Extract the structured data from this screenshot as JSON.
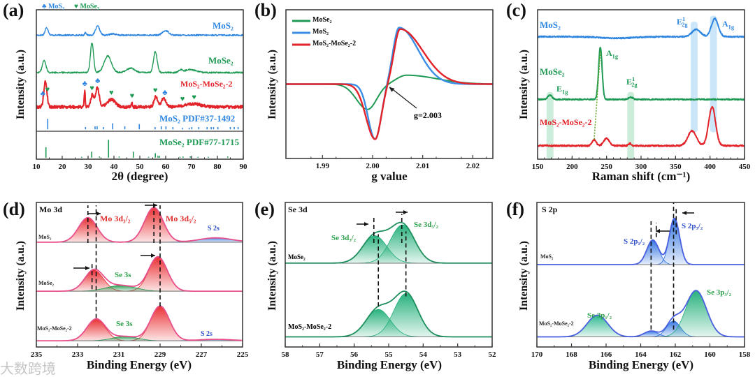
{
  "panels": {
    "a": {
      "letter": "(a)",
      "legend_mos2": "♣ MoS₂",
      "legend_mose2": "♥ MoSe₂",
      "mos2": "MoS₂",
      "mose2": "MoSe₂",
      "composite": "MoS₂-MoSe₂-2",
      "ref_mos2": "MoS₂  PDF#37-1492",
      "ref_mose2": "MoSe₂ PDF#77-1715"
    },
    "b": {
      "letter": "(b)",
      "legend": [
        "MoSe₂",
        "MoS₂",
        "MoS₂-MoSe₂-2"
      ],
      "annotation": "g=2.003"
    },
    "c": {
      "letter": "(c)",
      "mos2": "MoS₂",
      "mose2": "MoSe₂",
      "composite": "MoS₂-MoSe₂-2",
      "e2g_blue": {
        "base": "E",
        "sup": "1",
        "sub": "2g"
      },
      "a1g_blue": {
        "base": "A",
        "sub": "1g"
      },
      "a1g_green": {
        "base": "A",
        "sub": "1g"
      },
      "e1g_green": {
        "base": "E",
        "sub": "1g"
      },
      "e2g_green": {
        "base": "E",
        "sup": "1",
        "sub": "2g"
      }
    },
    "d": {
      "letter": "(d)",
      "title": "Mo 3d",
      "mos2": "MoS₂",
      "mose2": "MoSe₂",
      "composite": "MoS₂-MoSe₂-2",
      "mo3d32": "Mo 3d₃/₂",
      "mo3d52": "Mo 3d₅/₂",
      "s2s_1": "S 2s",
      "se3s_1": "Se 3s",
      "se3s_2": "Se 3s",
      "s2s_2": "S 2s"
    },
    "e": {
      "letter": "(e)",
      "title": "Se 3d",
      "se3d32": "Se 3d₃/₂",
      "se3d52": "Se 3d₅/₂",
      "mose2": "MoSe₂",
      "composite": "MoS₂-MoSe₂-2"
    },
    "f": {
      "letter": "(f)",
      "title": "S 2p",
      "s2p12": "S 2p₁/₂",
      "s2p32": "S 2p₃/₂",
      "mos2": "MoS₂",
      "se3p12": "Se 3p₁/₂",
      "se3p32": "Se 3p₃/₂",
      "composite": "MoS₂-MoSe₂-2"
    }
  },
  "watermark": "大数跨境",
  "chart_data": [
    {
      "id": "a",
      "type": "line",
      "xlabel": "2θ (degree)",
      "ylabel": "Intensity (a.u.)",
      "xlim": [
        10,
        90
      ],
      "ylim": [
        0,
        100
      ],
      "xticks": [
        10,
        20,
        30,
        40,
        50,
        60,
        70,
        80,
        90
      ],
      "minor_step": 5,
      "divider": 18.7,
      "series": [
        {
          "name": "MoS₂",
          "color": "#2f86e0",
          "offset": 83,
          "noise": 0.5,
          "peaks": [
            [
              14,
              5,
              0.6
            ],
            [
              29,
              2,
              0.3
            ],
            [
              33.7,
              6,
              0.8
            ],
            [
              39.5,
              1,
              1
            ],
            [
              60,
              3,
              1.2
            ]
          ]
        },
        {
          "name": "MoSe₂",
          "color": "#1f9a55",
          "offset": 58,
          "noise": 0.5,
          "peaks": [
            [
              13,
              8,
              0.7
            ],
            [
              31.5,
              20,
              0.6
            ],
            [
              37.6,
              11,
              1.4
            ],
            [
              46.5,
              3,
              1.5
            ],
            [
              56,
              14,
              0.7
            ],
            [
              65.8,
              1.5,
              0.8
            ],
            [
              69.5,
              2,
              2
            ]
          ]
        },
        {
          "name": "MoS₂-MoSe₂-2",
          "color": "#e3232a",
          "offset": 35,
          "noise": 1.0,
          "width": 2,
          "peaks": [
            [
              13.5,
              17,
              0.6
            ],
            [
              28.7,
              11,
              0.2
            ],
            [
              31.6,
              8,
              0.6
            ],
            [
              33.6,
              13,
              0.7
            ],
            [
              39,
              5,
              1.5
            ],
            [
              47,
              3,
              0.2
            ],
            [
              56.2,
              7,
              0.7
            ],
            [
              59.2,
              6,
              0.8
            ],
            [
              70.5,
              2,
              3
            ]
          ]
        }
      ],
      "sticks": [
        {
          "name": "MoS₂ PDF#37-1492",
          "color": "#2f86e0",
          "offset": 20,
          "lines": [
            [
              14.4,
              7
            ],
            [
              29,
              1.5
            ],
            [
              32.7,
              2
            ],
            [
              33.5,
              2
            ],
            [
              35.9,
              1.5
            ],
            [
              39.5,
              4
            ],
            [
              44.2,
              2
            ],
            [
              49.8,
              3.5
            ],
            [
              55.9,
              1.5
            ],
            [
              58.3,
              2
            ],
            [
              60.1,
              2
            ],
            [
              62.8,
              1.5
            ],
            [
              66.5,
              1
            ],
            [
              69.1,
              1
            ],
            [
              70.1,
              1.5
            ],
            [
              72.8,
              1.5
            ],
            [
              76,
              1.5
            ],
            [
              77.6,
              1.5
            ],
            [
              78.5,
              1.5
            ],
            [
              80.2,
              1.5
            ],
            [
              85,
              1.5
            ],
            [
              86.5,
              1.5
            ],
            [
              88,
              1.5
            ]
          ]
        },
        {
          "name": "MoSe₂ PDF#77-1715",
          "color": "#1f9a55",
          "offset": 1,
          "lines": [
            [
              13.7,
              7
            ],
            [
              27.5,
              0.6
            ],
            [
              31.4,
              4
            ],
            [
              34.4,
              0.8
            ],
            [
              37.9,
              12
            ],
            [
              42,
              0.8
            ],
            [
              47.5,
              4
            ],
            [
              53.4,
              0.6
            ],
            [
              56,
              3
            ],
            [
              57,
              1.2
            ],
            [
              57.6,
              1.2
            ],
            [
              65.5,
              0.6
            ],
            [
              66.7,
              0.8
            ],
            [
              69.5,
              0.9
            ],
            [
              72.5,
              0.6
            ],
            [
              76.5,
              0.6
            ],
            [
              84,
              0.8
            ]
          ]
        }
      ],
      "markers": [
        {
          "x": 12.5,
          "symbol": "♣",
          "color": "#2f86e0"
        },
        {
          "x": 14.3,
          "symbol": "♥",
          "color": "#1f9a55"
        },
        {
          "x": 28.7,
          "symbol": "♣",
          "color": "#2f86e0"
        },
        {
          "x": 31.5,
          "symbol": "♥",
          "color": "#1f9a55"
        },
        {
          "x": 33.7,
          "symbol": "♣",
          "color": "#2f86e0"
        },
        {
          "x": 39,
          "symbol": "♥",
          "color": "#1f9a55"
        },
        {
          "x": 47,
          "symbol": "♥",
          "color": "#1f9a55"
        },
        {
          "x": 56,
          "symbol": "♥",
          "color": "#1f9a55"
        },
        {
          "x": 59.7,
          "symbol": "♣",
          "color": "#2f86e0"
        },
        {
          "x": 66.5,
          "symbol": "♥",
          "color": "#1f9a55"
        },
        {
          "x": 71,
          "symbol": "♥",
          "color": "#1f9a55"
        }
      ]
    },
    {
      "id": "b",
      "type": "line",
      "xlabel": "g value",
      "ylabel": "Intensity (a.u.)",
      "xlim": [
        1.9827,
        2.024
      ],
      "ylim": [
        0,
        100
      ],
      "xticks": [
        1.99,
        2.0,
        2.01,
        2.02
      ],
      "xtick_labels": [
        "1.99",
        "2.00",
        "2.01",
        "2.02"
      ],
      "minor_step": 0.005,
      "series": [
        {
          "name": "MoSe₂",
          "color": "#1f9a55",
          "offset": 50,
          "width": 2,
          "peaks": [
            [
              1.999,
              -17,
              0.0022,
              0.0018
            ],
            [
              2.0068,
              6,
              0.002,
              0.006
            ]
          ]
        },
        {
          "name": "MoS₂",
          "color": "#3a8ee6",
          "offset": 50,
          "width": 2.4,
          "peaks": [
            [
              2.0005,
              -37,
              0.0014,
              0.0012
            ],
            [
              2.0053,
              38,
              0.0012,
              0.0038
            ]
          ]
        },
        {
          "name": "MoS₂-MoSe₂-2",
          "color": "#e3232a",
          "offset": 50,
          "width": 2.4,
          "peaks": [
            [
              2.0005,
              -37,
              0.0018,
              0.0012
            ],
            [
              2.0055,
              37,
              0.0012,
              0.0045
            ]
          ]
        }
      ],
      "annotation": {
        "text": "g=2.003",
        "g": 2.003
      }
    },
    {
      "id": "c",
      "type": "line",
      "xlabel": "Raman shift (cm⁻¹)",
      "ylabel": "Intensity (a.u.)",
      "xlim": [
        150,
        450
      ],
      "ylim": [
        0,
        100
      ],
      "xticks": [
        150,
        200,
        250,
        300,
        350,
        400,
        450
      ],
      "minor_step": 10,
      "bands": [
        {
          "x": 168,
          "width": 10,
          "from": 0,
          "to": 45,
          "color": "#bfe8cf"
        },
        {
          "x": 285,
          "width": 10,
          "from": 0,
          "to": 45,
          "color": "#bfe8cf"
        },
        {
          "x": 377,
          "width": 10,
          "from": 18,
          "to": 92,
          "color": "#bfe0f7"
        },
        {
          "x": 405,
          "width": 10,
          "from": 18,
          "to": 96,
          "color": "#bfe0f7"
        }
      ],
      "series": [
        {
          "name": "MoS₂",
          "color": "#2f86e0",
          "offset": 82,
          "noise": 0.4,
          "width": 2,
          "peaks": [
            [
              265,
              -1,
              25
            ],
            [
              380,
              5,
              6
            ],
            [
              407,
              12,
              5
            ]
          ]
        },
        {
          "name": "MoSe₂",
          "color": "#1f9a55",
          "offset": 40,
          "noise": 0.4,
          "width": 2,
          "peaks": [
            [
              168,
              3,
              3
            ],
            [
              241,
              35,
              2.5
            ],
            [
              285,
              1.5,
              3
            ]
          ]
        },
        {
          "name": "MoS₂-MoSe₂-2",
          "color": "#e3232a",
          "offset": 9,
          "noise": 0.5,
          "width": 2,
          "peaks": [
            [
              232,
              4,
              3
            ],
            [
              250,
              5,
              4
            ],
            [
              284,
              1.5,
              2
            ],
            [
              374,
              10,
              6
            ],
            [
              403,
              26,
              5
            ]
          ]
        }
      ]
    },
    {
      "id": "d",
      "type": "xps",
      "xlabel": "Binding Energy (eV)",
      "ylabel": "Intensity (a.u.)",
      "xlim": [
        235,
        225
      ],
      "ylim": [
        0,
        100
      ],
      "xticks": [
        235,
        233,
        231,
        229,
        227,
        225
      ],
      "minor_step": 1,
      "series": [
        {
          "name": "MoS₂",
          "offset": 72.5,
          "envelope": "#e8508c",
          "components": [
            {
              "c": 232.5,
              "h": 17,
              "w": 0.45,
              "color": "#e8262a"
            },
            {
              "c": 229.3,
              "h": 24,
              "w": 0.45,
              "color": "#e8262a"
            },
            {
              "c": 226.3,
              "h": 3,
              "w": 0.8,
              "color": "#3a7fe0"
            }
          ]
        },
        {
          "name": "MoSe₂",
          "offset": 38.6,
          "envelope": "#e8508c",
          "components": [
            {
              "c": 232.2,
              "h": 14.5,
              "w": 0.45,
              "color": "#e8262a"
            },
            {
              "c": 229.1,
              "h": 23.7,
              "w": 0.45,
              "color": "#e8262a"
            },
            {
              "c": 230.9,
              "h": 4,
              "w": 0.7,
              "color": "#1e9a4a"
            }
          ]
        },
        {
          "name": "MoS₂-MoSe₂-2",
          "offset": 4.3,
          "envelope": "#e8508c",
          "components": [
            {
              "c": 232.1,
              "h": 15,
              "w": 0.45,
              "color": "#e8262a"
            },
            {
              "c": 229.0,
              "h": 24,
              "w": 0.45,
              "color": "#e8262a"
            },
            {
              "c": 230.7,
              "h": 3,
              "w": 0.6,
              "color": "#1e9a4a"
            },
            {
              "c": 226.3,
              "h": 1,
              "w": 0.8,
              "color": "#3a7fe0"
            }
          ]
        }
      ],
      "ref_lines": [
        {
          "x": 232.5,
          "from": 72,
          "to": 98
        },
        {
          "x": 232.1,
          "from": 20,
          "to": 98
        },
        {
          "x": 232.3,
          "from": 40,
          "to": 58
        },
        {
          "x": 229.3,
          "from": 72,
          "to": 98
        },
        {
          "x": 229.0,
          "from": 28,
          "to": 98
        }
      ]
    },
    {
      "id": "e",
      "type": "xps",
      "xlabel": "Binding Energy (eV)",
      "ylabel": "Intensity (a.u.)",
      "xlim": [
        58,
        52
      ],
      "ylim": [
        0,
        100
      ],
      "xticks": [
        58,
        57,
        56,
        55,
        54,
        53,
        52
      ],
      "minor_step": 0.5,
      "series": [
        {
          "name": "MoSe₂",
          "offset": 58,
          "envelope": "#1f8f5e",
          "components": [
            {
              "c": 55.4,
              "h": 19,
              "w": 0.35,
              "color": "#1fae78"
            },
            {
              "c": 54.6,
              "h": 26.5,
              "w": 0.35,
              "color": "#1fae78"
            }
          ]
        },
        {
          "name": "MoS₂-MoSe₂-2",
          "offset": 7,
          "envelope": "#1f8f5e",
          "components": [
            {
              "c": 55.3,
              "h": 19,
              "w": 0.35,
              "color": "#1fae78"
            },
            {
              "c": 54.5,
              "h": 30,
              "w": 0.35,
              "color": "#1fae78"
            }
          ]
        }
      ],
      "ref_lines": [
        {
          "x": 55.43,
          "from": 72,
          "to": 90
        },
        {
          "x": 54.62,
          "from": 72,
          "to": 92
        },
        {
          "x": 55.3,
          "from": 28,
          "to": 78
        },
        {
          "x": 54.5,
          "from": 35,
          "to": 80
        }
      ]
    },
    {
      "id": "f",
      "type": "xps",
      "xlabel": "Binding Energy (eV)",
      "ylabel": "Intensity (a.u.)",
      "xlim": [
        170,
        158
      ],
      "ylim": [
        0,
        100
      ],
      "xticks": [
        170,
        168,
        166,
        164,
        162,
        160,
        158
      ],
      "minor_step": 1,
      "series": [
        {
          "name": "MoS₂",
          "offset": 57,
          "envelope": "#4a5fe0",
          "components": [
            {
              "c": 163.3,
              "h": 17,
              "w": 0.35,
              "color": "#2a6fe0"
            },
            {
              "c": 162.05,
              "h": 32,
              "w": 0.3,
              "color": "#2a6fe0"
            }
          ]
        },
        {
          "name": "MoS₂-MoSe₂-2",
          "offset": 7,
          "envelope": "#4a5fe0",
          "components": [
            {
              "c": 166.5,
              "h": 15,
              "w": 0.6,
              "color": "#25b58a"
            },
            {
              "c": 163.4,
              "h": 4,
              "w": 0.4,
              "color": "#2a6fe0"
            },
            {
              "c": 162.1,
              "h": 11,
              "w": 0.4,
              "color": "#2a6fe0"
            },
            {
              "c": 160.8,
              "h": 32,
              "w": 0.6,
              "color": "#1fae78"
            }
          ]
        }
      ],
      "ref_lines": [
        {
          "x": 163.4,
          "from": 12,
          "to": 87
        },
        {
          "x": 162.1,
          "from": 12,
          "to": 100
        },
        {
          "x": 163.1,
          "from": 76,
          "to": 86
        },
        {
          "x": 161.95,
          "from": 78,
          "to": 96
        }
      ]
    }
  ]
}
